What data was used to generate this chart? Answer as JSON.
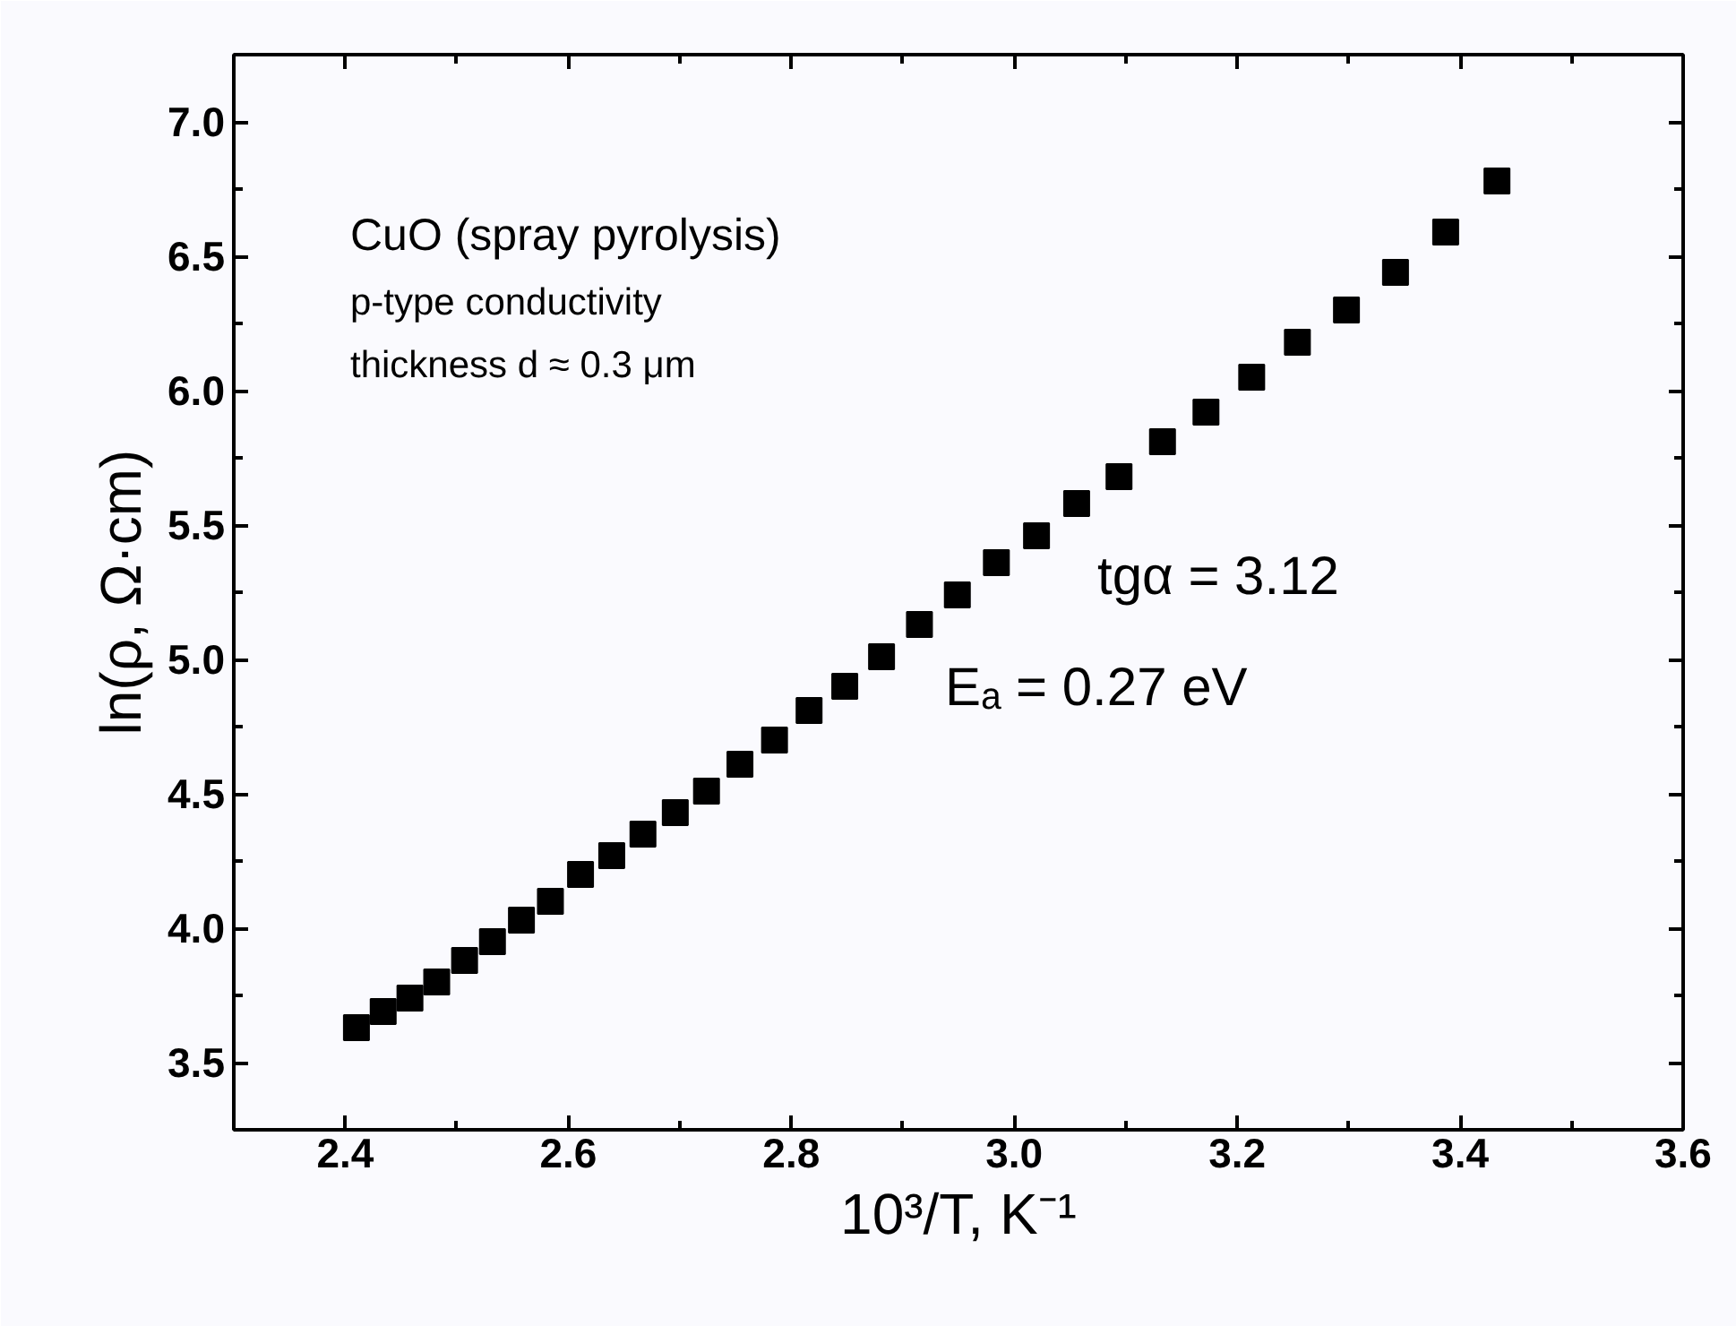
{
  "chart_data": {
    "type": "scatter",
    "xlabel": "10³/T, K⁻¹",
    "ylabel": "ln(ρ, Ω·cm)",
    "annotations": [
      "CuO (spray pyrolysis)",
      "p-type conductivity",
      "thickness d ≈ 0.3 μm",
      "tgα = 3.12",
      "Eₐ = 0.27 eV"
    ],
    "x": [
      2.41,
      2.434,
      2.458,
      2.482,
      2.507,
      2.532,
      2.558,
      2.584,
      2.611,
      2.639,
      2.667,
      2.696,
      2.724,
      2.754,
      2.785,
      2.816,
      2.848,
      2.881,
      2.915,
      2.949,
      2.984,
      3.02,
      3.056,
      3.094,
      3.133,
      3.172,
      3.213,
      3.254,
      3.298,
      3.342,
      3.387,
      3.433
    ],
    "series": [
      {
        "color": "#000000",
        "values": [
          3.63,
          3.69,
          3.74,
          3.8,
          3.88,
          3.95,
          4.03,
          4.1,
          4.2,
          4.27,
          4.35,
          4.43,
          4.51,
          4.61,
          4.7,
          4.81,
          4.9,
          5.01,
          5.13,
          5.24,
          5.36,
          5.46,
          5.58,
          5.68,
          5.81,
          5.92,
          6.05,
          6.18,
          6.3,
          6.44,
          6.59,
          6.78
        ]
      }
    ],
    "marker": "square",
    "xlim": [
      2.3,
      3.6
    ],
    "ylim": [
      3.25,
      7.25
    ],
    "xticks": [
      2.4,
      2.6,
      2.8,
      {
        "value": 3,
        "label": "3.0"
      },
      3.2,
      3.4,
      3.6
    ],
    "yticks": [
      3.5,
      {
        "value": 4,
        "label": "4.0"
      },
      4.5,
      {
        "value": 5,
        "label": "5.0"
      },
      5.5,
      {
        "value": 6,
        "label": "6.0"
      },
      6.5,
      {
        "value": 7,
        "label": "7.0"
      }
    ]
  }
}
